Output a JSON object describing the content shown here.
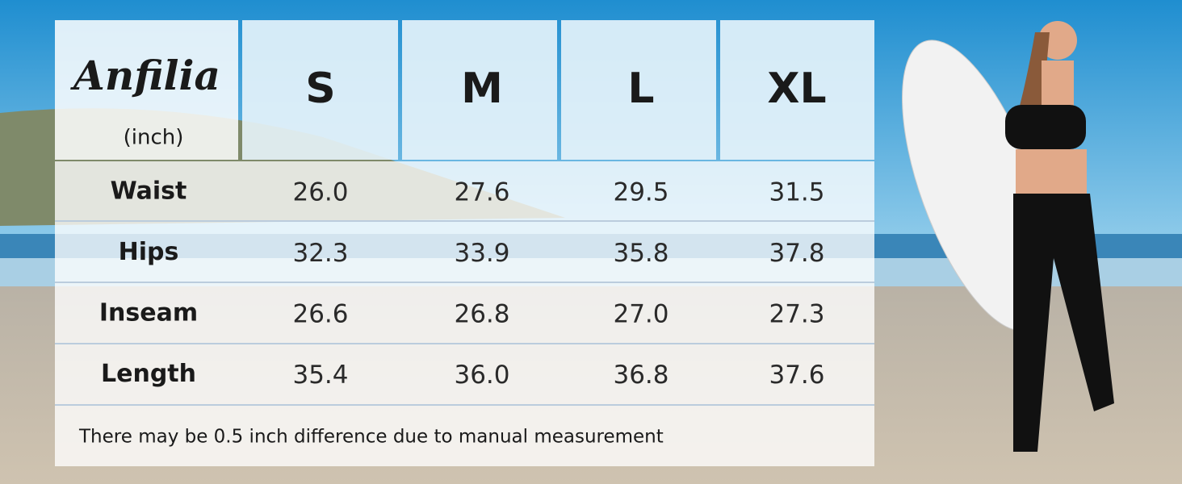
{
  "brand": "Anfilia",
  "unit": "(inch)",
  "table": {
    "header": [
      "S",
      "M",
      "L",
      "XL"
    ],
    "rows": [
      {
        "label": "Waist",
        "values": [
          "26.0",
          "27.6",
          "29.5",
          "31.5"
        ]
      },
      {
        "label": "Hips",
        "values": [
          "32.3",
          "33.9",
          "35.8",
          "37.8"
        ]
      },
      {
        "label": "Inseam",
        "values": [
          "26.6",
          "26.8",
          "27.0",
          "27.3"
        ]
      },
      {
        "label": "Length",
        "values": [
          "35.4",
          "36.0",
          "36.8",
          "37.6"
        ]
      }
    ]
  },
  "note": "There may be 0.5 inch difference due to manual measurement"
}
